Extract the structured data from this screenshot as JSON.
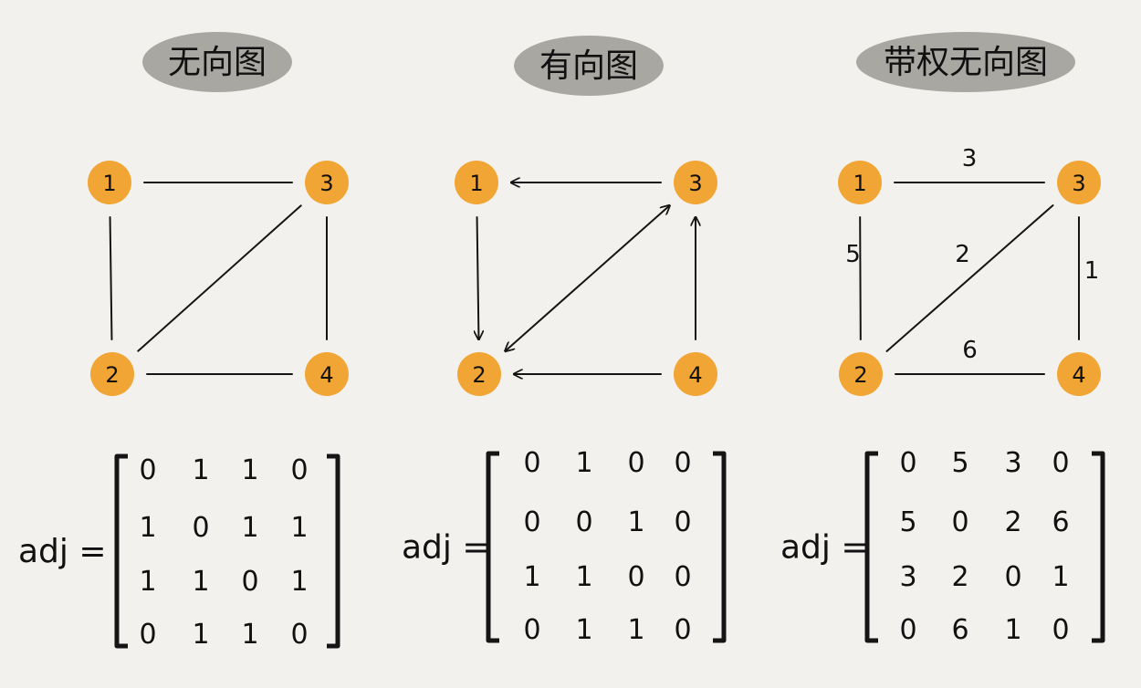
{
  "colors": {
    "node": "#f1a534",
    "title_bg": "#a9a7a2",
    "stroke": "#151515",
    "bg": "#f3f1ed"
  },
  "panels": [
    {
      "title": "无向图",
      "nodes": [
        "1",
        "2",
        "3",
        "4"
      ],
      "edges": [
        {
          "from": "1",
          "to": "3"
        },
        {
          "from": "1",
          "to": "2"
        },
        {
          "from": "2",
          "to": "3"
        },
        {
          "from": "3",
          "to": "4"
        },
        {
          "from": "2",
          "to": "4"
        }
      ],
      "matrix_label": "adj =",
      "matrix": [
        [
          "0",
          "1",
          "1",
          "0"
        ],
        [
          "1",
          "0",
          "1",
          "1"
        ],
        [
          "1",
          "1",
          "0",
          "1"
        ],
        [
          "0",
          "1",
          "1",
          "0"
        ]
      ]
    },
    {
      "title": "有向图",
      "nodes": [
        "1",
        "2",
        "3",
        "4"
      ],
      "edges": [
        {
          "from": "3",
          "to": "1",
          "directed": true
        },
        {
          "from": "1",
          "to": "2",
          "directed": true
        },
        {
          "from": "2",
          "to": "3",
          "directed": true,
          "bidirectional": true
        },
        {
          "from": "4",
          "to": "3",
          "directed": true
        },
        {
          "from": "4",
          "to": "2",
          "directed": true
        }
      ],
      "matrix_label": "adj =",
      "matrix": [
        [
          "0",
          "1",
          "0",
          "0"
        ],
        [
          "0",
          "0",
          "1",
          "0"
        ],
        [
          "1",
          "1",
          "0",
          "0"
        ],
        [
          "0",
          "1",
          "1",
          "0"
        ]
      ]
    },
    {
      "title": "带权无向图",
      "nodes": [
        "1",
        "2",
        "3",
        "4"
      ],
      "edges": [
        {
          "from": "1",
          "to": "3",
          "weight": "3"
        },
        {
          "from": "1",
          "to": "2",
          "weight": "5"
        },
        {
          "from": "2",
          "to": "3",
          "weight": "2"
        },
        {
          "from": "3",
          "to": "4",
          "weight": "1"
        },
        {
          "from": "2",
          "to": "4",
          "weight": "6"
        }
      ],
      "matrix_label": "adj =",
      "matrix": [
        [
          "0",
          "5",
          "3",
          "0"
        ],
        [
          "5",
          "0",
          "2",
          "6"
        ],
        [
          "3",
          "2",
          "0",
          "1"
        ],
        [
          "0",
          "6",
          "1",
          "0"
        ]
      ]
    }
  ]
}
